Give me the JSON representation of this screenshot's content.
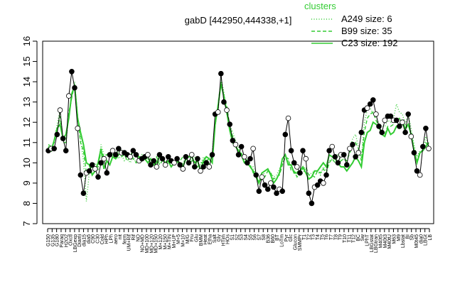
{
  "chart_data": {
    "type": "line",
    "title": "gabD [442950,444338,+1]",
    "xlabel": "",
    "ylabel": "",
    "ylim": [
      7,
      16
    ],
    "yticks": [
      7,
      8,
      9,
      10,
      11,
      12,
      13,
      14,
      15,
      16
    ],
    "grid": false,
    "legend_position": "top-right",
    "legend": {
      "title": "clusters",
      "entries": [
        {
          "label": "A249 size: 6",
          "style": "dotted"
        },
        {
          "label": "B99 size: 35",
          "style": "dashed"
        },
        {
          "label": "C23 size: 192",
          "style": "solid"
        }
      ]
    },
    "colors": {
      "clusters": "#33cc33",
      "points": "#000000"
    },
    "xtick_labels": [
      "G150",
      "G135",
      "G180",
      "Paraq",
      "H2O2",
      "Oxctl",
      "LBGexp",
      "Diami",
      "dia15",
      "dia5",
      "C90",
      "C30",
      "Cold",
      "HPh",
      "LPh",
      "aero",
      "nit",
      "ferm",
      "UM+Rif",
      "Rif",
      "NO",
      "NO+MD",
      "MD+100",
      "MD+120",
      "MD+150",
      "M+120",
      "M+150",
      "M+TIN",
      "M+UP",
      "M+5",
      "M+10",
      "M/G",
      "Fru",
      "Glu",
      "BMM",
      "Heat",
      "Etha",
      "Salt",
      "Gly",
      "HTim",
      "HOs",
      "S1",
      "S2",
      "S3",
      "S4",
      "S5",
      "S6",
      "S7",
      "S8",
      "B36",
      "B60",
      "BT",
      "LoTm",
      "Pyr",
      "Glc",
      "Glucon",
      "SMMPr",
      "T1",
      "T2",
      "T3",
      "T4",
      "T5",
      "T6",
      "T7",
      "T8",
      "T9",
      "T10",
      "T11",
      "T12",
      "BC",
      "Sw",
      "LPhT",
      "LBGstat",
      "LBGtran",
      "M40t5",
      "M40t3",
      "M40tU",
      "M63",
      "M9",
      "Lbstat",
      "BI",
      "Sb",
      "M0t45",
      "dia0",
      "LBGt",
      "LB"
    ],
    "series": [
      {
        "name": "",
        "style": "C23",
        "y": [
          10.8,
          10.6,
          11.1,
          11.7,
          11.9,
          11.2,
          11.4,
          12.2,
          13.4,
          13.8,
          12.2,
          11.5,
          10.9,
          10.0,
          9.9,
          9.4,
          9.6,
          10.0,
          10.7,
          9.7,
          10.1,
          9.9,
          10.3,
          10.2,
          10.4,
          10.6,
          10.5,
          10.4,
          10.3,
          10.6,
          10.4,
          10.3,
          10.1,
          10.2,
          10.0,
          10.2,
          9.9,
          10.0,
          10.3,
          10.2,
          10.0,
          10.1,
          9.8,
          10.0,
          10.1,
          10.0,
          9.8,
          10.2,
          10.3,
          10.3,
          10.0,
          10.1,
          9.6,
          10.1,
          10.3,
          10.2,
          10.0,
          11.9,
          12.8,
          13.9,
          13.3,
          12.5,
          11.6,
          11.0,
          10.8,
          10.6,
          10.4,
          10.0,
          10.0,
          9.8,
          9.6,
          9.3,
          9.0,
          9.5,
          9.6,
          9.7,
          9.4,
          9.0,
          9.2,
          9.5,
          10.2,
          10.4,
          9.9,
          9.9,
          9.5,
          9.5,
          9.6,
          9.8,
          9.5,
          9.2,
          9.3,
          9.6,
          9.6,
          9.8,
          10.0,
          9.8,
          10.4,
          10.3,
          10.2,
          10.0,
          9.8,
          9.8,
          9.6,
          9.8,
          10.0,
          10.3,
          10.1,
          9.8,
          11.0,
          11.5,
          11.6,
          12.0,
          11.9,
          11.8,
          11.4,
          11.3,
          11.7,
          11.4,
          11.5,
          11.8,
          11.9,
          12.0,
          11.7,
          11.9,
          11.4,
          10.6,
          10.0,
          10.5,
          10.6,
          10.8,
          11.0
        ]
      },
      {
        "name": "",
        "style": "B99",
        "y": [
          10.9,
          10.8,
          11.0,
          11.6,
          12.3,
          11.0,
          11.0,
          12.5,
          13.2,
          13.9,
          12.3,
          11.0,
          10.6,
          9.5,
          9.8,
          9.8,
          9.8,
          9.8,
          10.6,
          10.3,
          10.4,
          10.5,
          10.4,
          10.4,
          10.6,
          10.3,
          10.4,
          10.1,
          10.3,
          10.2,
          10.0,
          10.3,
          10.3,
          10.2,
          10.2,
          10.1,
          10.1,
          10.3,
          9.9,
          10.1,
          10.0,
          10.0,
          10.0,
          10.0,
          10.0,
          10.1,
          10.3,
          10.2,
          9.9,
          10.1,
          10.1,
          9.8,
          10.0,
          10.0,
          10.1,
          10.2,
          10.4,
          11.8,
          12.9,
          14.0,
          13.3,
          12.8,
          11.8,
          11.3,
          10.9,
          10.5,
          10.5,
          10.0,
          10.2,
          9.9,
          9.5,
          9.4,
          9.0,
          9.3,
          9.3,
          9.6,
          9.5,
          9.2,
          9.3,
          9.4,
          9.9,
          10.3,
          10.2,
          9.6,
          9.6,
          9.3,
          9.6,
          9.7,
          9.8,
          9.4,
          9.4,
          9.3,
          9.6,
          9.5,
          9.7,
          9.5,
          10.0,
          10.2,
          10.0,
          9.9,
          10.1,
          10.2,
          10.1,
          10.5,
          10.8,
          11.0,
          10.7,
          10.1,
          11.5,
          12.2,
          12.4,
          12.5,
          12.1,
          11.8,
          11.6,
          11.4,
          11.8,
          11.8,
          11.9,
          12.1,
          12.2,
          11.9,
          11.6,
          11.9,
          11.4,
          10.6,
          10.1,
          10.5,
          10.6,
          11.0,
          10.8
        ]
      },
      {
        "name": "",
        "style": "A249",
        "y": [
          10.8,
          10.8,
          11.0,
          11.9,
          12.6,
          11.1,
          11.0,
          12.3,
          13.2,
          14.0,
          12.3,
          11.2,
          10.1,
          8.1,
          9.5,
          9.8,
          10.0,
          9.7,
          10.9,
          10.4,
          10.4,
          10.5,
          10.4,
          10.5,
          10.2,
          10.4,
          10.1,
          10.2,
          10.0,
          10.3,
          10.0,
          10.2,
          10.4,
          10.1,
          10.3,
          10.0,
          10.2,
          10.1,
          10.1,
          10.2,
          10.0,
          10.0,
          9.8,
          10.1,
          10.2,
          9.8,
          10.0,
          10.3,
          10.1,
          10.2,
          10.3,
          10.0,
          9.9,
          10.3,
          10.1,
          9.9,
          10.5,
          12.1,
          12.5,
          14.2,
          13.5,
          12.4,
          11.9,
          11.5,
          11.1,
          10.8,
          10.3,
          10.0,
          10.0,
          9.8,
          9.8,
          9.4,
          9.1,
          9.2,
          9.6,
          9.7,
          9.5,
          9.3,
          9.4,
          9.7,
          10.0,
          10.2,
          10.1,
          9.8,
          9.5,
          9.6,
          9.4,
          9.5,
          9.7,
          9.4,
          9.5,
          9.6,
          9.6,
          9.4,
          9.8,
          9.6,
          10.1,
          10.2,
          10.3,
          10.4,
          10.1,
          10.2,
          10.0,
          10.6,
          11.2,
          11.4,
          10.8,
          10.2,
          12.0,
          12.6,
          12.7,
          12.4,
          12.3,
          11.9,
          11.8,
          11.8,
          12.1,
          12.0,
          12.2,
          12.9,
          12.5,
          12.4,
          11.9,
          12.4,
          11.7,
          10.9,
          10.3,
          10.6,
          10.6,
          11.3,
          10.8
        ]
      },
      {
        "name": "",
        "style": "points",
        "y": [
          10.6,
          10.7,
          10.7,
          11.4,
          12.6,
          11.2,
          10.6,
          13.3,
          14.5,
          13.7,
          11.7,
          9.4,
          8.5,
          9.5,
          9.6,
          9.9,
          9.7,
          9.3,
          10.0,
          10.2,
          9.5,
          10.4,
          10.6,
          10.4,
          10.7,
          10.5,
          10.5,
          10.4,
          10.3,
          10.6,
          10.4,
          10.1,
          10.2,
          10.3,
          10.4,
          9.9,
          10.1,
          9.8,
          10.4,
          10.2,
          9.9,
          10.3,
          10.1,
          10.0,
          10.2,
          9.9,
          9.7,
          10.3,
          10.0,
          10.4,
          9.8,
          10.2,
          9.6,
          9.8,
          10.0,
          9.8,
          10.4,
          12.4,
          12.5,
          14.4,
          13.0,
          12.6,
          11.9,
          11.1,
          10.9,
          10.4,
          10.8,
          10.3,
          10.0,
          10.2,
          10.7,
          9.4,
          8.6,
          9.3,
          8.9,
          8.7,
          9.0,
          8.8,
          8.5,
          8.7,
          8.6,
          11.4,
          12.2,
          10.6,
          10.0,
          9.8,
          9.5,
          10.6,
          10.2,
          8.5,
          8.0,
          8.8,
          8.9,
          9.1,
          9.0,
          9.4,
          10.6,
          10.8,
          10.3,
          10.0,
          10.4,
          10.4,
          9.9,
          10.7,
          10.9,
          10.3,
          10.5,
          11.5,
          12.6,
          12.7,
          12.9,
          13.1,
          12.4,
          11.8,
          11.5,
          12.1,
          12.3,
          12.3,
          12.1,
          12.1,
          11.8,
          12.0,
          11.5,
          12.4,
          11.3,
          10.5,
          9.6,
          9.4,
          10.8,
          11.7,
          10.7
        ]
      }
    ]
  }
}
